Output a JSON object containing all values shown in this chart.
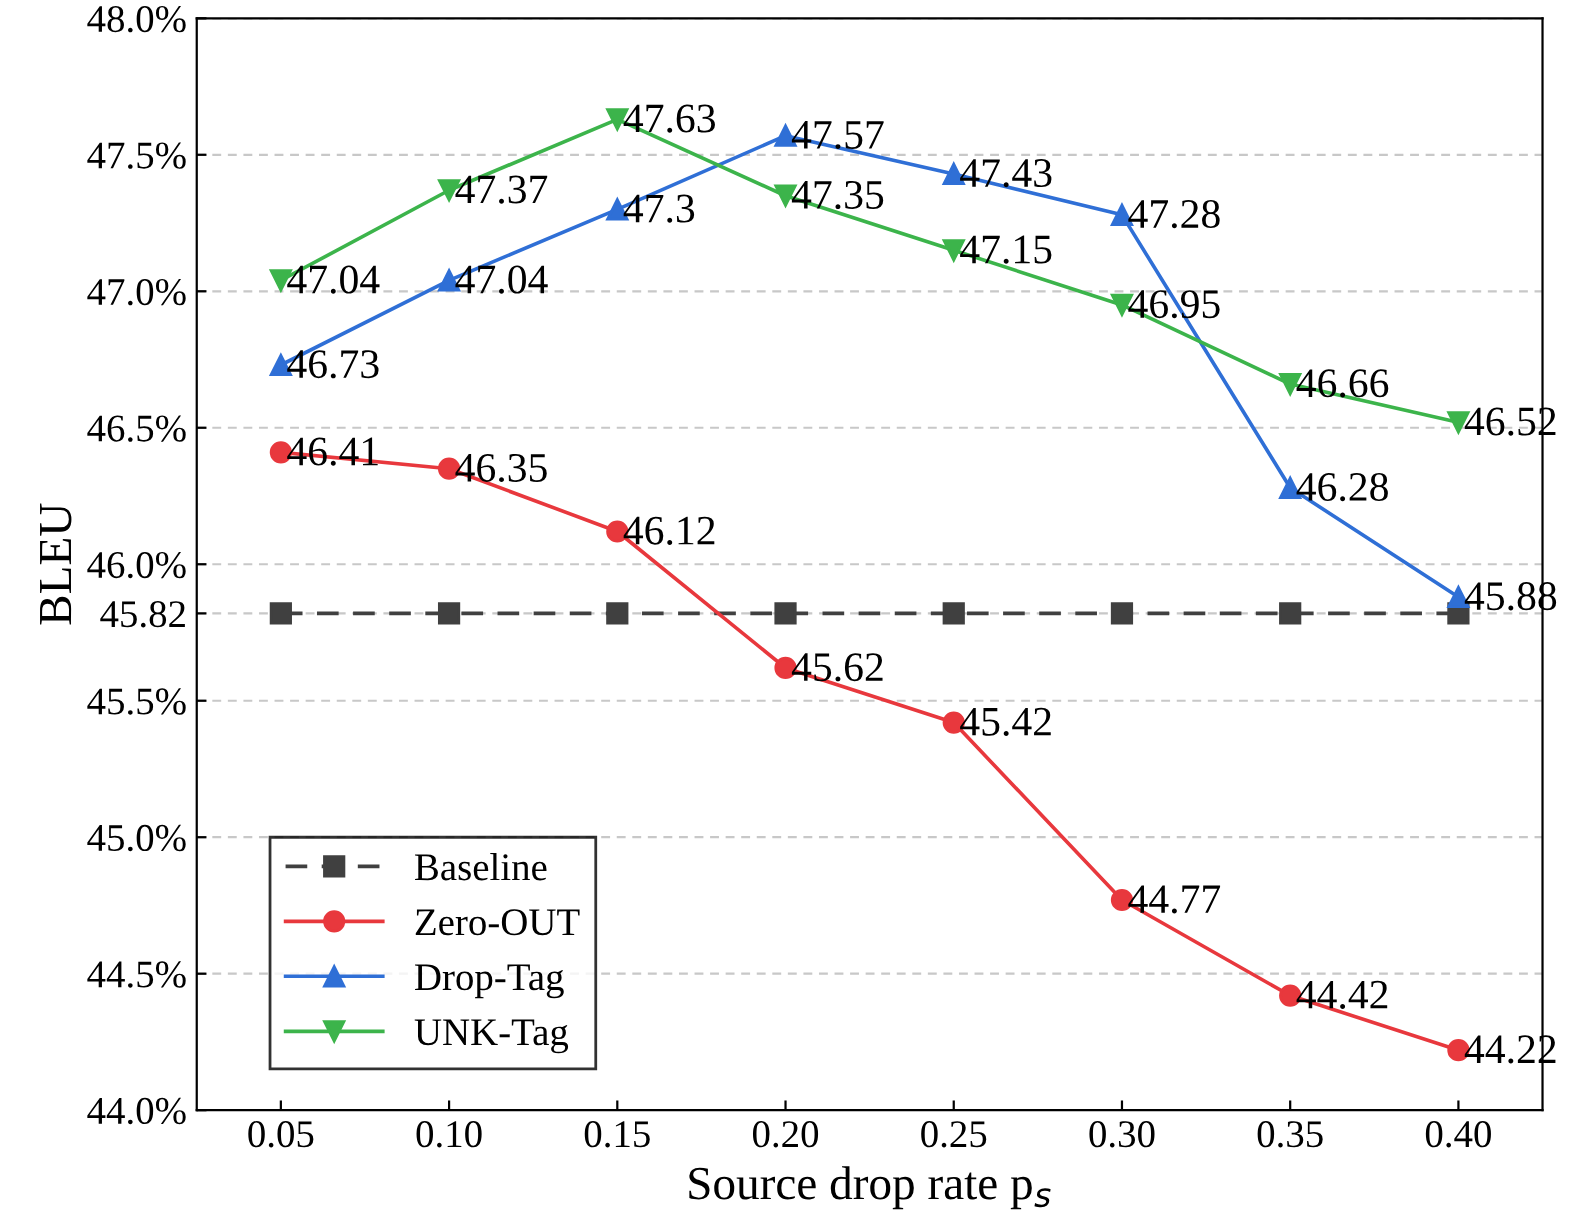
{
  "chart_data": {
    "type": "line",
    "xlabel": "Source drop rate p$_{s}$",
    "ylabel": "BLEU",
    "x": [
      0.05,
      0.1,
      0.15,
      0.2,
      0.25,
      0.3,
      0.35,
      0.4
    ],
    "xlim": [
      0.025,
      0.425
    ],
    "xticks": [
      {
        "value": 0.05,
        "label": "0.05"
      },
      {
        "value": 0.1,
        "label": "0.10"
      },
      {
        "value": 0.15,
        "label": "0.15"
      },
      {
        "value": 0.2,
        "label": "0.20"
      },
      {
        "value": 0.25,
        "label": "0.25"
      },
      {
        "value": 0.3,
        "label": "0.30"
      },
      {
        "value": 0.35,
        "label": "0.35"
      },
      {
        "value": 0.4,
        "label": "0.40"
      }
    ],
    "ylim": [
      44.0,
      48.0
    ],
    "yticks": [
      {
        "value": 44.0,
        "label": "44.0%"
      },
      {
        "value": 44.5,
        "label": "44.5%"
      },
      {
        "value": 45.0,
        "label": "45.0%"
      },
      {
        "value": 45.5,
        "label": "45.5%"
      },
      {
        "value": 45.82,
        "label": "45.82"
      },
      {
        "value": 46.0,
        "label": "46.0%"
      },
      {
        "value": 46.5,
        "label": "46.5%"
      },
      {
        "value": 47.0,
        "label": "47.0%"
      },
      {
        "value": 47.5,
        "label": "47.5%"
      },
      {
        "value": 48.0,
        "label": "48.0%"
      }
    ],
    "grid": "y",
    "legend": "bottom left",
    "series": [
      {
        "name": "Baseline",
        "color": "#404040",
        "marker": "square",
        "line_style": "dashed",
        "values": [
          45.82,
          45.82,
          45.82,
          45.82,
          45.82,
          45.82,
          45.82,
          45.82
        ]
      },
      {
        "name": "Zero-OUT",
        "color": "#e8383d",
        "marker": "circle",
        "line_style": "solid",
        "values": [
          46.41,
          46.35,
          46.12,
          45.62,
          45.42,
          44.77,
          44.42,
          44.22
        ],
        "value_labels": [
          "46.41",
          "46.35",
          "46.12",
          "45.62",
          "45.42",
          "44.77",
          "44.42",
          "44.22"
        ]
      },
      {
        "name": "Drop-Tag",
        "color": "#2f6fd6",
        "marker": "triangle",
        "line_style": "solid",
        "values": [
          46.73,
          47.04,
          47.3,
          47.57,
          47.43,
          47.28,
          46.28,
          45.88
        ],
        "value_labels": [
          "46.73",
          "47.04",
          "47.3",
          "47.57",
          "47.43",
          "47.28",
          "46.28",
          "45.88"
        ]
      },
      {
        "name": "UNK-Tag",
        "color": "#3cb44b",
        "marker": "triangle_down",
        "line_style": "solid",
        "values": [
          47.04,
          47.37,
          47.63,
          47.35,
          47.15,
          46.95,
          46.66,
          46.52
        ],
        "value_labels": [
          "47.04",
          "47.37",
          "47.63",
          "47.35",
          "47.15",
          "46.95",
          "46.66",
          "46.52"
        ]
      }
    ]
  }
}
